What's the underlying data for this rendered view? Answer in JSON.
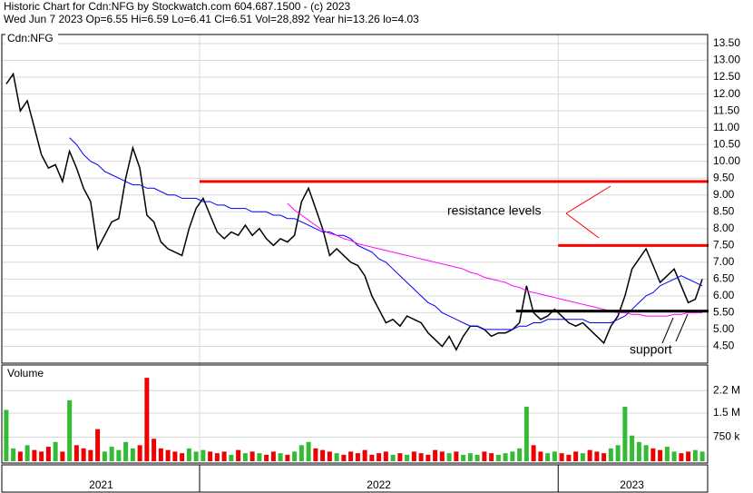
{
  "chart_data": {
    "type": "line",
    "title": "Historic Chart for Cdn:NFG by Stockwatch.com 604.687.1500 - (c) 2023",
    "subtitle": "Wed Jun  7 2023  Op=6.55  Hi=6.59  Lo=6.41  Cl=6.51  Vol=28,892  Year hi=13.26  lo=4.03",
    "symbol": "Cdn:NFG",
    "grid": true,
    "categories": [
      "2021",
      null,
      null,
      null,
      null,
      null,
      null,
      null,
      null,
      null,
      null,
      null,
      null,
      null,
      null,
      null,
      null,
      null,
      null,
      null,
      null,
      null,
      null,
      null,
      null,
      null,
      null,
      null,
      "2022",
      null,
      null,
      null,
      null,
      null,
      null,
      null,
      null,
      null,
      null,
      null,
      null,
      null,
      null,
      null,
      null,
      null,
      null,
      null,
      null,
      null,
      null,
      null,
      null,
      null,
      null,
      null,
      null,
      null,
      null,
      null,
      null,
      null,
      null,
      null,
      null,
      null,
      null,
      null,
      null,
      null,
      null,
      null,
      null,
      null,
      null,
      null,
      null,
      null,
      null,
      "2023",
      null,
      null,
      null,
      null,
      null,
      null,
      null,
      null,
      null,
      null,
      null,
      null,
      null,
      null,
      null,
      null,
      null,
      null,
      null,
      null
    ],
    "series": [
      {
        "color": "#000000",
        "values": [
          12.3,
          12.6,
          11.5,
          11.8,
          11.0,
          10.2,
          9.8,
          9.9,
          9.4,
          10.3,
          9.8,
          9.2,
          8.8,
          7.4,
          7.8,
          8.2,
          8.3,
          9.5,
          10.4,
          9.8,
          8.4,
          8.2,
          7.6,
          7.4,
          7.3,
          7.2,
          8.0,
          8.6,
          8.9,
          8.4,
          7.9,
          7.7,
          7.9,
          7.8,
          8.1,
          7.8,
          8.0,
          7.7,
          7.5,
          7.7,
          7.6,
          7.8,
          8.8,
          9.2,
          8.6,
          8.0,
          7.2,
          7.4,
          7.2,
          7.0,
          6.9,
          6.6,
          6.0,
          5.6,
          5.2,
          5.3,
          5.1,
          5.4,
          5.3,
          5.2,
          4.9,
          4.7,
          4.5,
          4.8,
          4.4,
          4.8,
          5.1,
          5.1,
          5.0,
          4.8,
          4.9,
          4.9,
          5.0,
          5.2,
          6.3,
          5.5,
          5.3,
          5.4,
          5.6,
          5.4,
          5.2,
          5.1,
          5.2,
          5.0,
          4.8,
          4.6,
          5.1,
          5.4,
          6.0,
          6.8,
          7.1,
          7.4,
          6.9,
          6.4,
          6.6,
          6.8,
          6.3,
          5.8,
          5.9,
          6.5
        ]
      },
      {
        "color": "#0000ff",
        "values": [
          null,
          null,
          null,
          null,
          null,
          null,
          null,
          null,
          null,
          10.7,
          10.5,
          10.2,
          10.0,
          9.9,
          9.7,
          9.6,
          9.5,
          9.4,
          9.3,
          9.3,
          9.2,
          9.2,
          9.1,
          9.0,
          9.0,
          8.9,
          8.9,
          8.9,
          8.8,
          8.8,
          8.7,
          8.7,
          8.6,
          8.6,
          8.6,
          8.5,
          8.5,
          8.5,
          8.4,
          8.4,
          8.3,
          8.3,
          8.2,
          8.1,
          8.0,
          7.9,
          7.9,
          7.8,
          7.8,
          7.7,
          7.5,
          7.4,
          7.3,
          7.1,
          7.0,
          6.8,
          6.6,
          6.4,
          6.2,
          6.0,
          5.8,
          5.7,
          5.5,
          5.4,
          5.3,
          5.2,
          5.1,
          5.1,
          5.0,
          5.0,
          5.0,
          5.0,
          5.0,
          5.1,
          5.1,
          5.2,
          5.2,
          5.3,
          5.3,
          5.3,
          5.3,
          5.3,
          5.3,
          5.2,
          5.2,
          5.2,
          5.2,
          5.3,
          5.4,
          5.6,
          5.8,
          6.0,
          6.1,
          6.3,
          6.4,
          6.5,
          6.6,
          6.5,
          6.4,
          6.3
        ]
      },
      {
        "color": "#ff00ff",
        "values": [
          null,
          null,
          null,
          null,
          null,
          null,
          null,
          null,
          null,
          null,
          null,
          null,
          null,
          null,
          null,
          null,
          null,
          null,
          null,
          null,
          null,
          null,
          null,
          null,
          null,
          null,
          null,
          null,
          null,
          null,
          null,
          null,
          null,
          null,
          null,
          null,
          null,
          null,
          null,
          null,
          8.75,
          8.55,
          8.4,
          8.25,
          8.1,
          7.95,
          7.85,
          7.8,
          7.7,
          7.65,
          7.55,
          7.5,
          7.45,
          7.4,
          7.35,
          7.3,
          7.25,
          7.2,
          7.15,
          7.1,
          7.05,
          7.0,
          6.95,
          6.9,
          6.85,
          6.8,
          6.7,
          6.65,
          6.55,
          6.5,
          6.45,
          6.4,
          6.3,
          6.25,
          6.15,
          6.1,
          6.05,
          6.0,
          5.95,
          5.9,
          5.85,
          5.8,
          5.75,
          5.7,
          5.65,
          5.6,
          5.55,
          5.5,
          5.5,
          5.45,
          5.45,
          5.4,
          5.4,
          5.4,
          5.4,
          5.45,
          5.45,
          5.5,
          5.5,
          5.5
        ]
      }
    ],
    "ylim": [
      4.0,
      13.77
    ],
    "yticks": [
      {
        "value": 4.5,
        "label": "4.50"
      },
      {
        "value": 5,
        "label": "5.00"
      },
      {
        "value": 5.5,
        "label": "5.50"
      },
      {
        "value": 6,
        "label": "6.00"
      },
      {
        "value": 6.5,
        "label": "6.50"
      },
      {
        "value": 7,
        "label": "7.00"
      },
      {
        "value": 7.5,
        "label": "7.50"
      },
      {
        "value": 8,
        "label": "8.00"
      },
      {
        "value": 8.5,
        "label": "8.50"
      },
      {
        "value": 9,
        "label": "9.00"
      },
      {
        "value": 9.5,
        "label": "9.50"
      },
      {
        "value": 10,
        "label": "10.00"
      },
      {
        "value": 10.5,
        "label": "10.50"
      },
      {
        "value": 11,
        "label": "11.00"
      },
      {
        "value": 11.5,
        "label": "11.50"
      },
      {
        "value": 12,
        "label": "12.00"
      },
      {
        "value": 12.5,
        "label": "12.50"
      },
      {
        "value": 13,
        "label": "13.00"
      },
      {
        "value": 13.5,
        "label": "13.50"
      }
    ],
    "levels": [
      {
        "value": 9.4,
        "from": 28,
        "color": "#ff0000"
      },
      {
        "value": 7.5,
        "from": 79,
        "color": "#ff0000"
      },
      {
        "value": 5.55,
        "from": 73,
        "color": "#000000"
      }
    ],
    "annotations": [
      {
        "text": "resistance levels",
        "color": "#ff0000"
      },
      {
        "text": "support",
        "color": "#000000"
      }
    ],
    "volume": {
      "title": "Volume",
      "up_color": "#33bb33",
      "down_color": "#ee0000",
      "values": [
        1600000,
        400000,
        300000,
        500000,
        350000,
        300000,
        450000,
        600000,
        300000,
        1900000,
        500000,
        400000,
        350000,
        1000000,
        300000,
        450000,
        350000,
        600000,
        400000,
        500000,
        2600000,
        700000,
        400000,
        350000,
        300000,
        250000,
        400000,
        300000,
        350000,
        300000,
        250000,
        300000,
        200000,
        350000,
        250000,
        300000,
        250000,
        200000,
        300000,
        250000,
        200000,
        300000,
        500000,
        600000,
        400000,
        350000,
        300000,
        250000,
        200000,
        300000,
        250000,
        350000,
        200000,
        250000,
        300000,
        200000,
        250000,
        200000,
        300000,
        250000,
        200000,
        350000,
        300000,
        250000,
        300000,
        200000,
        250000,
        200000,
        300000,
        250000,
        200000,
        250000,
        300000,
        400000,
        1700000,
        500000,
        300000,
        250000,
        300000,
        250000,
        200000,
        300000,
        250000,
        350000,
        300000,
        250000,
        400000,
        500000,
        1700000,
        800000,
        600000,
        500000,
        400000,
        350000,
        450000,
        300000,
        250000,
        300000,
        350000,
        300000
      ],
      "ylim": [
        0,
        3000000
      ],
      "yticks": [
        {
          "value": 750000,
          "label": "750 k"
        },
        {
          "value": 1500000,
          "label": "1.5 M"
        },
        {
          "value": 2200000,
          "label": "2.2 M"
        }
      ]
    }
  }
}
